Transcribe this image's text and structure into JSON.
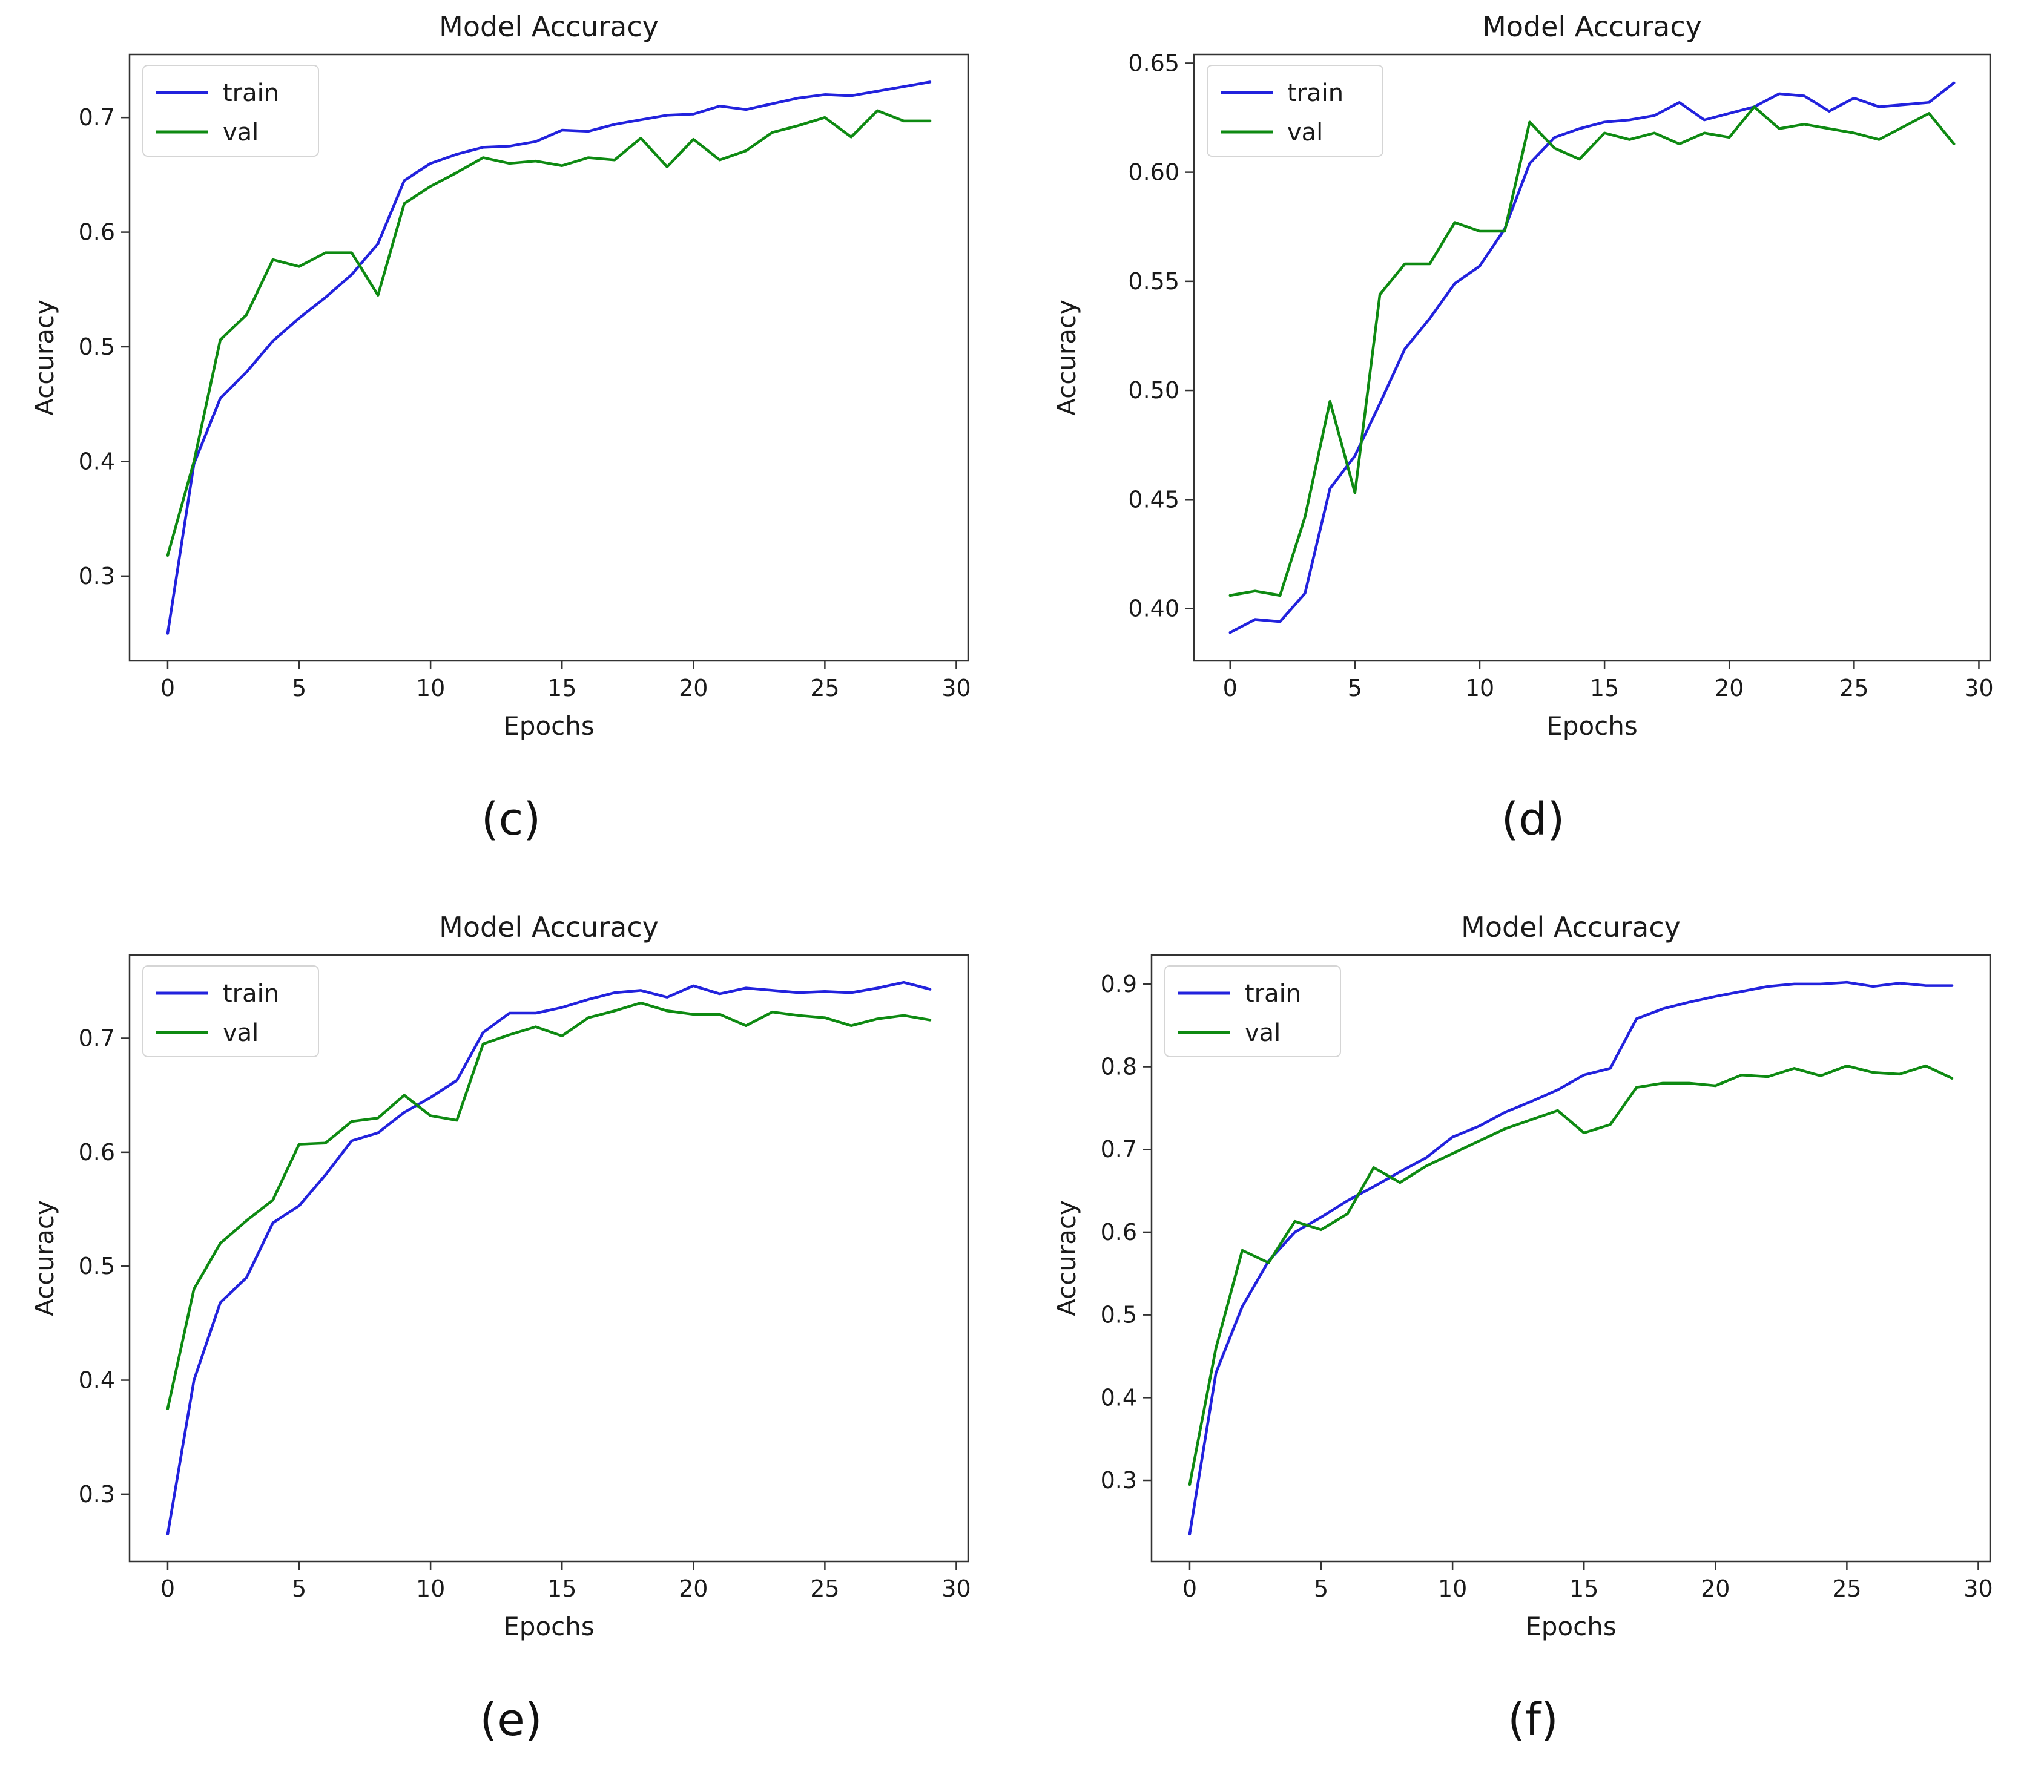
{
  "page": {
    "background": "#ffffff"
  },
  "colors": {
    "train_line": "#2222dd",
    "val_line": "#0e8a12",
    "axis": "#333333",
    "text": "#1a1a1a",
    "legend_border": "#d5d5d5"
  },
  "chart_data": [
    {
      "id": "c",
      "caption": "(c)",
      "type": "line",
      "title": "Model Accuracy",
      "xlabel": "Epochs",
      "ylabel": "Accuracy",
      "legend_position": "upper left",
      "grid": false,
      "x": [
        0,
        1,
        2,
        3,
        4,
        5,
        6,
        7,
        8,
        9,
        10,
        11,
        12,
        13,
        14,
        15,
        16,
        17,
        18,
        19,
        20,
        21,
        22,
        23,
        24,
        25,
        26,
        27,
        28,
        29
      ],
      "xlim": [
        -1.45,
        30.45
      ],
      "ylim": [
        0.226,
        0.755
      ],
      "xtick_labels": [
        "0",
        "5",
        "10",
        "15",
        "20",
        "25",
        "30"
      ],
      "ytick_labels": [
        "0.3",
        "0.4",
        "0.5",
        "0.6",
        "0.7"
      ],
      "series": [
        {
          "name": "train",
          "color": "#2222dd",
          "values": [
            0.25,
            0.398,
            0.455,
            0.478,
            0.505,
            0.525,
            0.543,
            0.563,
            0.59,
            0.645,
            0.66,
            0.668,
            0.674,
            0.675,
            0.679,
            0.689,
            0.688,
            0.694,
            0.698,
            0.702,
            0.703,
            0.71,
            0.707,
            0.712,
            0.717,
            0.72,
            0.719,
            0.723,
            0.727,
            0.731
          ]
        },
        {
          "name": "val",
          "color": "#0e8a12",
          "values": [
            0.318,
            0.4,
            0.506,
            0.528,
            0.576,
            0.57,
            0.582,
            0.582,
            0.545,
            0.625,
            0.64,
            0.652,
            0.665,
            0.66,
            0.662,
            0.658,
            0.665,
            0.663,
            0.682,
            0.657,
            0.681,
            0.663,
            0.671,
            0.687,
            0.693,
            0.7,
            0.683,
            0.706,
            0.697,
            0.697
          ]
        }
      ]
    },
    {
      "id": "d",
      "caption": "(d)",
      "type": "line",
      "title": "Model Accuracy",
      "xlabel": "Epochs",
      "ylabel": "Accuracy",
      "legend_position": "upper left",
      "grid": false,
      "x": [
        0,
        1,
        2,
        3,
        4,
        5,
        6,
        7,
        8,
        9,
        10,
        11,
        12,
        13,
        14,
        15,
        16,
        17,
        18,
        19,
        20,
        21,
        22,
        23,
        24,
        25,
        26,
        27,
        28,
        29
      ],
      "xlim": [
        -1.45,
        30.45
      ],
      "ylim": [
        0.376,
        0.654
      ],
      "xtick_labels": [
        "0",
        "5",
        "10",
        "15",
        "20",
        "25",
        "30"
      ],
      "ytick_labels": [
        "0.40",
        "0.45",
        "0.50",
        "0.55",
        "0.60",
        "0.65"
      ],
      "series": [
        {
          "name": "train",
          "color": "#2222dd",
          "values": [
            0.389,
            0.395,
            0.394,
            0.407,
            0.455,
            0.47,
            0.494,
            0.519,
            0.533,
            0.549,
            0.557,
            0.574,
            0.604,
            0.616,
            0.62,
            0.623,
            0.624,
            0.626,
            0.632,
            0.624,
            0.627,
            0.63,
            0.636,
            0.635,
            0.628,
            0.634,
            0.63,
            0.631,
            0.632,
            0.641
          ]
        },
        {
          "name": "val",
          "color": "#0e8a12",
          "values": [
            0.406,
            0.408,
            0.406,
            0.442,
            0.495,
            0.453,
            0.544,
            0.558,
            0.558,
            0.577,
            0.573,
            0.573,
            0.623,
            0.611,
            0.606,
            0.618,
            0.615,
            0.618,
            0.613,
            0.618,
            0.616,
            0.63,
            0.62,
            0.622,
            0.62,
            0.618,
            0.615,
            0.621,
            0.627,
            0.613
          ]
        }
      ]
    },
    {
      "id": "e",
      "caption": "(e)",
      "type": "line",
      "title": "Model Accuracy",
      "xlabel": "Epochs",
      "ylabel": "Accuracy",
      "legend_position": "upper left",
      "grid": false,
      "x": [
        0,
        1,
        2,
        3,
        4,
        5,
        6,
        7,
        8,
        9,
        10,
        11,
        12,
        13,
        14,
        15,
        16,
        17,
        18,
        19,
        20,
        21,
        22,
        23,
        24,
        25,
        26,
        27,
        28,
        29
      ],
      "xlim": [
        -1.45,
        30.45
      ],
      "ylim": [
        0.241,
        0.773
      ],
      "xtick_labels": [
        "0",
        "5",
        "10",
        "15",
        "20",
        "25",
        "30"
      ],
      "ytick_labels": [
        "0.3",
        "0.4",
        "0.5",
        "0.6",
        "0.7"
      ],
      "series": [
        {
          "name": "train",
          "color": "#2222dd",
          "values": [
            0.265,
            0.4,
            0.468,
            0.49,
            0.538,
            0.553,
            0.58,
            0.61,
            0.617,
            0.635,
            0.648,
            0.663,
            0.705,
            0.722,
            0.722,
            0.727,
            0.734,
            0.74,
            0.742,
            0.736,
            0.746,
            0.739,
            0.744,
            0.742,
            0.74,
            0.741,
            0.74,
            0.744,
            0.749,
            0.743
          ]
        },
        {
          "name": "val",
          "color": "#0e8a12",
          "values": [
            0.375,
            0.48,
            0.52,
            0.54,
            0.558,
            0.607,
            0.608,
            0.627,
            0.63,
            0.65,
            0.632,
            0.628,
            0.695,
            0.703,
            0.71,
            0.702,
            0.718,
            0.724,
            0.731,
            0.724,
            0.721,
            0.721,
            0.711,
            0.723,
            0.72,
            0.718,
            0.711,
            0.717,
            0.72,
            0.716
          ]
        }
      ]
    },
    {
      "id": "f",
      "caption": "(f)",
      "type": "line",
      "title": "Model Accuracy",
      "xlabel": "Epochs",
      "ylabel": "Accuracy",
      "legend_position": "upper left",
      "grid": false,
      "x": [
        0,
        1,
        2,
        3,
        4,
        5,
        6,
        7,
        8,
        9,
        10,
        11,
        12,
        13,
        14,
        15,
        16,
        17,
        18,
        19,
        20,
        21,
        22,
        23,
        24,
        25,
        26,
        27,
        28,
        29
      ],
      "xlim": [
        -1.45,
        30.45
      ],
      "ylim": [
        0.202,
        0.935
      ],
      "xtick_labels": [
        "0",
        "5",
        "10",
        "15",
        "20",
        "25",
        "30"
      ],
      "ytick_labels": [
        "0.3",
        "0.4",
        "0.5",
        "0.6",
        "0.7",
        "0.8",
        "0.9"
      ],
      "series": [
        {
          "name": "train",
          "color": "#2222dd",
          "values": [
            0.235,
            0.43,
            0.51,
            0.565,
            0.6,
            0.618,
            0.638,
            0.655,
            0.673,
            0.69,
            0.715,
            0.728,
            0.745,
            0.758,
            0.772,
            0.79,
            0.798,
            0.858,
            0.87,
            0.878,
            0.885,
            0.891,
            0.897,
            0.9,
            0.9,
            0.902,
            0.897,
            0.901,
            0.898,
            0.898
          ]
        },
        {
          "name": "val",
          "color": "#0e8a12",
          "values": [
            0.295,
            0.46,
            0.578,
            0.563,
            0.613,
            0.603,
            0.622,
            0.678,
            0.66,
            0.68,
            0.695,
            0.71,
            0.725,
            0.736,
            0.747,
            0.72,
            0.73,
            0.775,
            0.78,
            0.78,
            0.777,
            0.79,
            0.788,
            0.798,
            0.789,
            0.801,
            0.793,
            0.791,
            0.801,
            0.786
          ]
        }
      ]
    }
  ]
}
